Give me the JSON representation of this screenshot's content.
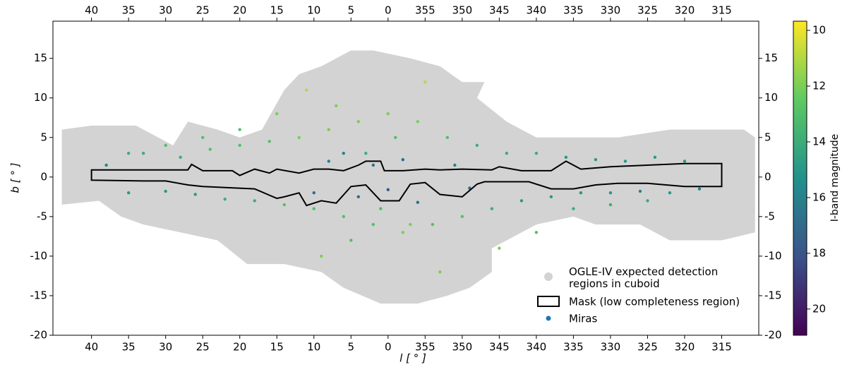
{
  "chart_data": {
    "type": "scatter",
    "xlabel": "l [ ° ]",
    "ylabel": "b [ ° ]",
    "xlim": [
      45.2,
      -50
    ],
    "ylim": [
      -20,
      19.7
    ],
    "xticks": [
      40,
      35,
      30,
      25,
      20,
      15,
      10,
      5,
      0,
      {
        "value": -5,
        "label": "355"
      },
      {
        "value": -10,
        "label": "350"
      },
      {
        "value": -15,
        "label": "345"
      },
      {
        "value": -20,
        "label": "340"
      },
      {
        "value": -25,
        "label": "335"
      },
      {
        "value": -30,
        "label": "330"
      },
      {
        "value": -35,
        "label": "325"
      },
      {
        "value": -40,
        "label": "320"
      },
      {
        "value": -45,
        "label": "315"
      }
    ],
    "yticks": [
      -20,
      -15,
      -10,
      -5,
      0,
      5,
      10,
      15
    ],
    "colorbar": {
      "label": "I-band magnitude",
      "lim": [
        9.67,
        20.94
      ],
      "ticks": [
        10,
        12,
        14,
        16,
        18,
        20
      ],
      "cmap": "viridis_r"
    },
    "legend": "lower right",
    "series": [
      {
        "name": "OGLE-IV expected detection regions in cuboid",
        "color": "#d3d3d3",
        "type": "region",
        "x": [
          44,
          44,
          40,
          34,
          31,
          29,
          27,
          23,
          20,
          17,
          14,
          12,
          9,
          5,
          2,
          -3,
          -7,
          -10,
          -13,
          -12,
          -16,
          -20,
          -26,
          -31,
          -38,
          -45,
          -48,
          -49.5,
          -49.5,
          -45,
          -38,
          -34,
          -28,
          -25,
          -20,
          -14,
          -14,
          -11,
          -8,
          -4,
          1,
          6,
          9,
          14,
          19,
          23,
          28,
          33,
          36,
          39,
          44
        ],
        "y": [
          -3,
          6,
          6.5,
          6.5,
          5,
          4,
          7,
          6,
          5,
          6,
          11,
          13,
          14,
          16,
          16,
          15,
          14,
          12,
          12,
          10,
          7,
          5,
          5,
          5,
          6,
          6,
          6,
          5,
          -7,
          -8,
          -8,
          -6,
          -6,
          -5,
          -6,
          -9,
          -12,
          -14,
          -15,
          -16,
          -16,
          -14,
          -12,
          -11,
          -11,
          -8,
          -7,
          -6,
          -5,
          -3,
          -3.5
        ]
      },
      {
        "name": "Mask (low completeness region)",
        "color": "#000000",
        "type": "polygon",
        "x": [
          40,
          27,
          26.5,
          25,
          21,
          20,
          18,
          16,
          15,
          12,
          10,
          8,
          6,
          4,
          3,
          1,
          0.5,
          -2,
          -5,
          -7,
          -10,
          -14,
          -15,
          -18,
          -22,
          -24,
          -26,
          -30,
          -35,
          -40,
          -45,
          -45,
          -40,
          -35,
          -31,
          -28,
          -25,
          -22,
          -19,
          -13,
          -12,
          -10,
          -7,
          -5,
          -3,
          -1.5,
          1,
          3,
          5,
          7,
          9,
          11,
          12,
          14,
          15,
          18,
          25,
          27,
          30,
          33,
          40
        ],
        "y": [
          0.9,
          0.9,
          1.6,
          0.8,
          0.8,
          0.2,
          1,
          0.5,
          1,
          0.5,
          1,
          1,
          0.8,
          1.5,
          2,
          2,
          0.8,
          0.8,
          1,
          0.9,
          1,
          0.9,
          1.3,
          0.8,
          0.8,
          2,
          1,
          1.3,
          1.5,
          1.7,
          1.7,
          -1.2,
          -1.2,
          -0.8,
          -0.8,
          -1,
          -1.5,
          -1.5,
          -0.6,
          -0.6,
          -0.9,
          -2.5,
          -2.2,
          -0.7,
          -0.9,
          -3,
          -3,
          -1,
          -1.2,
          -3.3,
          -3,
          -3.6,
          -2,
          -2.5,
          -2.7,
          -1.5,
          -1.2,
          -1,
          -0.5,
          -0.5,
          -0.4
        ]
      },
      {
        "name": "Miras",
        "color": "#1f77b4",
        "type": "points",
        "x": [
          38,
          35,
          33,
          30,
          28,
          26,
          24,
          22,
          20,
          18,
          16,
          14,
          12,
          10,
          8,
          6,
          4,
          2,
          0,
          -2,
          -4,
          -6,
          -8,
          -10,
          -12,
          -14,
          -16,
          -18,
          -20,
          -22,
          -24,
          -26,
          -28,
          -30,
          -32,
          -34,
          -36,
          -38,
          -40,
          -42,
          3,
          1,
          -1,
          -3,
          5,
          7,
          9,
          11,
          -5,
          -7,
          2,
          0,
          -2,
          4,
          6,
          -4,
          8,
          10,
          -9,
          -11,
          15,
          -15,
          20,
          -20,
          25,
          -25,
          30,
          -30,
          35,
          -35
        ],
        "y": [
          1.5,
          -2,
          3,
          -1.8,
          2.5,
          -2.2,
          3.5,
          -2.8,
          4,
          -3,
          4.5,
          -3.5,
          5,
          -4,
          6,
          -5,
          7,
          -6,
          8,
          -7,
          7,
          -6,
          5,
          -5,
          4,
          -4,
          3,
          -3,
          3,
          -2.5,
          2.5,
          -2,
          2.2,
          -2,
          2,
          -1.8,
          2.5,
          -2,
          2,
          -1.5,
          3,
          -4,
          5,
          -6,
          -8,
          9,
          -10,
          11,
          12,
          -12,
          1.5,
          -1.6,
          2.2,
          -2.5,
          3,
          -3.2,
          2,
          -2,
          1.5,
          -1.4,
          8,
          -9,
          6,
          -7,
          5,
          -4,
          4,
          -3.5,
          3,
          -3
        ],
        "values": [
          16,
          15,
          14,
          15,
          14,
          15,
          13,
          14,
          13,
          14,
          13,
          13,
          12,
          13,
          12,
          13,
          12,
          13,
          12,
          12,
          12,
          13,
          13,
          13,
          14,
          14,
          14,
          15,
          14,
          15,
          15,
          15,
          15,
          15,
          15,
          16,
          15,
          15,
          15,
          16,
          14,
          13,
          13,
          12,
          13,
          12,
          12,
          11,
          11,
          12,
          17,
          18,
          17,
          17,
          16,
          17,
          16,
          17,
          16,
          17,
          12,
          12,
          13,
          13,
          13,
          14,
          13,
          14,
          14,
          14
        ]
      }
    ]
  }
}
